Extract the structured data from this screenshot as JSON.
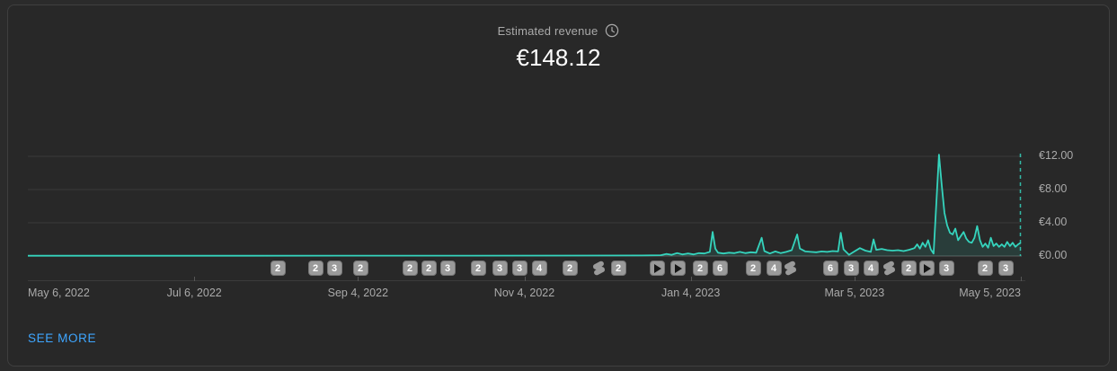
{
  "card": {
    "header": {
      "title": "Estimated revenue",
      "value": "€148.12",
      "info_icon": "clock-icon"
    },
    "see_more_label": "SEE MORE"
  },
  "colors": {
    "accent_teal": "#35d4bd",
    "link_blue": "#3ea6ff",
    "card_bg": "#282828",
    "page_bg": "#2b2b2b",
    "border": "#3f3f3f",
    "grid": "#3a3a3a",
    "zero_line": "#5c5c5c",
    "text_secondary": "#aaaaaa",
    "text_primary": "#ffffff",
    "badge_bg": "#9a9a9a"
  },
  "chart_data": {
    "type": "line",
    "title": "Estimated revenue",
    "total_value": "€148.12",
    "currency": "EUR",
    "grid": true,
    "legend": false,
    "end_marker": "dashed-vertical-line",
    "x_axis": {
      "total_days": 364,
      "ticks": [
        {
          "label": "May 6, 2022",
          "day": 0
        },
        {
          "label": "Jul 6, 2022",
          "day": 61
        },
        {
          "label": "Sep 4, 2022",
          "day": 121
        },
        {
          "label": "Nov 4, 2022",
          "day": 182
        },
        {
          "label": "Jan 4, 2023",
          "day": 243
        },
        {
          "label": "Mar 5, 2023",
          "day": 303
        },
        {
          "label": "May 5, 2023",
          "day": 364
        }
      ]
    },
    "y_axis": {
      "ylim": [
        0,
        13.2
      ],
      "ticks": [
        {
          "label": "€12.00",
          "value": 12
        },
        {
          "label": "€8.00",
          "value": 8
        },
        {
          "label": "€4.00",
          "value": 4
        },
        {
          "label": "€0.00",
          "value": 0
        }
      ]
    },
    "series": [
      {
        "name": "Estimated revenue (EUR) per day",
        "points": [
          [
            0,
            0.03
          ],
          [
            40,
            0.03
          ],
          [
            80,
            0.03
          ],
          [
            120,
            0.04
          ],
          [
            160,
            0.04
          ],
          [
            200,
            0.05
          ],
          [
            225,
            0.06
          ],
          [
            232,
            0.1
          ],
          [
            234,
            0.25
          ],
          [
            236,
            0.15
          ],
          [
            238,
            0.35
          ],
          [
            240,
            0.2
          ],
          [
            242,
            0.3
          ],
          [
            244,
            0.2
          ],
          [
            246,
            0.35
          ],
          [
            248,
            0.3
          ],
          [
            250,
            0.5
          ],
          [
            251,
            2.9
          ],
          [
            252,
            0.9
          ],
          [
            253,
            0.4
          ],
          [
            255,
            0.3
          ],
          [
            257,
            0.4
          ],
          [
            259,
            0.35
          ],
          [
            261,
            0.5
          ],
          [
            263,
            0.35
          ],
          [
            265,
            0.45
          ],
          [
            267,
            0.4
          ],
          [
            269,
            2.2
          ],
          [
            270,
            0.6
          ],
          [
            272,
            0.3
          ],
          [
            274,
            0.55
          ],
          [
            276,
            0.35
          ],
          [
            278,
            0.5
          ],
          [
            280,
            0.7
          ],
          [
            282,
            2.6
          ],
          [
            283,
            0.9
          ],
          [
            285,
            0.55
          ],
          [
            287,
            0.5
          ],
          [
            289,
            0.45
          ],
          [
            291,
            0.55
          ],
          [
            293,
            0.5
          ],
          [
            295,
            0.6
          ],
          [
            297,
            0.55
          ],
          [
            298,
            2.8
          ],
          [
            299,
            0.8
          ],
          [
            301,
            0.15
          ],
          [
            303,
            0.55
          ],
          [
            305,
            0.95
          ],
          [
            307,
            0.65
          ],
          [
            309,
            0.5
          ],
          [
            310,
            2.0
          ],
          [
            311,
            0.75
          ],
          [
            313,
            0.85
          ],
          [
            315,
            0.7
          ],
          [
            317,
            0.65
          ],
          [
            319,
            0.7
          ],
          [
            321,
            0.6
          ],
          [
            323,
            0.75
          ],
          [
            325,
            0.95
          ],
          [
            326,
            1.4
          ],
          [
            327,
            0.9
          ],
          [
            328,
            1.6
          ],
          [
            329,
            1.1
          ],
          [
            330,
            1.9
          ],
          [
            331,
            0.8
          ],
          [
            332,
            0.3
          ],
          [
            334,
            12.2
          ],
          [
            335,
            8.5
          ],
          [
            336,
            5.2
          ],
          [
            337,
            3.7
          ],
          [
            338,
            2.8
          ],
          [
            339,
            2.6
          ],
          [
            340,
            3.3
          ],
          [
            341,
            1.9
          ],
          [
            342,
            2.4
          ],
          [
            343,
            2.9
          ],
          [
            344,
            2.1
          ],
          [
            345,
            1.7
          ],
          [
            346,
            1.6
          ],
          [
            347,
            2.2
          ],
          [
            348,
            3.6
          ],
          [
            349,
            1.9
          ],
          [
            350,
            1.1
          ],
          [
            351,
            1.5
          ],
          [
            352,
            1.0
          ],
          [
            353,
            2.2
          ],
          [
            354,
            1.2
          ],
          [
            355,
            1.5
          ],
          [
            356,
            1.1
          ],
          [
            357,
            1.4
          ],
          [
            358,
            1.1
          ],
          [
            359,
            1.7
          ],
          [
            360,
            1.2
          ],
          [
            361,
            1.6
          ],
          [
            362,
            1.1
          ],
          [
            363,
            1.4
          ],
          [
            364,
            1.6
          ]
        ]
      }
    ],
    "timeline_markers": [
      {
        "pos": 278,
        "type": "count",
        "label": "2"
      },
      {
        "pos": 320,
        "type": "count",
        "label": "2"
      },
      {
        "pos": 341,
        "type": "count",
        "label": "3"
      },
      {
        "pos": 370,
        "type": "count",
        "label": "2"
      },
      {
        "pos": 425,
        "type": "count",
        "label": "2"
      },
      {
        "pos": 446,
        "type": "count",
        "label": "2"
      },
      {
        "pos": 467,
        "type": "count",
        "label": "3"
      },
      {
        "pos": 501,
        "type": "count",
        "label": "2"
      },
      {
        "pos": 525,
        "type": "count",
        "label": "3"
      },
      {
        "pos": 547,
        "type": "count",
        "label": "3"
      },
      {
        "pos": 569,
        "type": "count",
        "label": "4"
      },
      {
        "pos": 603,
        "type": "count",
        "label": "2"
      },
      {
        "pos": 635,
        "type": "shorts",
        "label": ""
      },
      {
        "pos": 657,
        "type": "count",
        "label": "2"
      },
      {
        "pos": 700,
        "type": "play",
        "label": ""
      },
      {
        "pos": 723,
        "type": "play",
        "label": ""
      },
      {
        "pos": 748,
        "type": "count",
        "label": "2"
      },
      {
        "pos": 770,
        "type": "count",
        "label": "6"
      },
      {
        "pos": 807,
        "type": "count",
        "label": "2"
      },
      {
        "pos": 830,
        "type": "count",
        "label": "4"
      },
      {
        "pos": 848,
        "type": "shorts",
        "label": ""
      },
      {
        "pos": 893,
        "type": "count",
        "label": "6"
      },
      {
        "pos": 916,
        "type": "count",
        "label": "3"
      },
      {
        "pos": 938,
        "type": "count",
        "label": "4"
      },
      {
        "pos": 958,
        "type": "shorts",
        "label": ""
      },
      {
        "pos": 980,
        "type": "count",
        "label": "2"
      },
      {
        "pos": 1000,
        "type": "play",
        "label": ""
      },
      {
        "pos": 1022,
        "type": "count",
        "label": "3"
      },
      {
        "pos": 1065,
        "type": "count",
        "label": "2"
      },
      {
        "pos": 1088,
        "type": "count",
        "label": "3"
      }
    ]
  }
}
